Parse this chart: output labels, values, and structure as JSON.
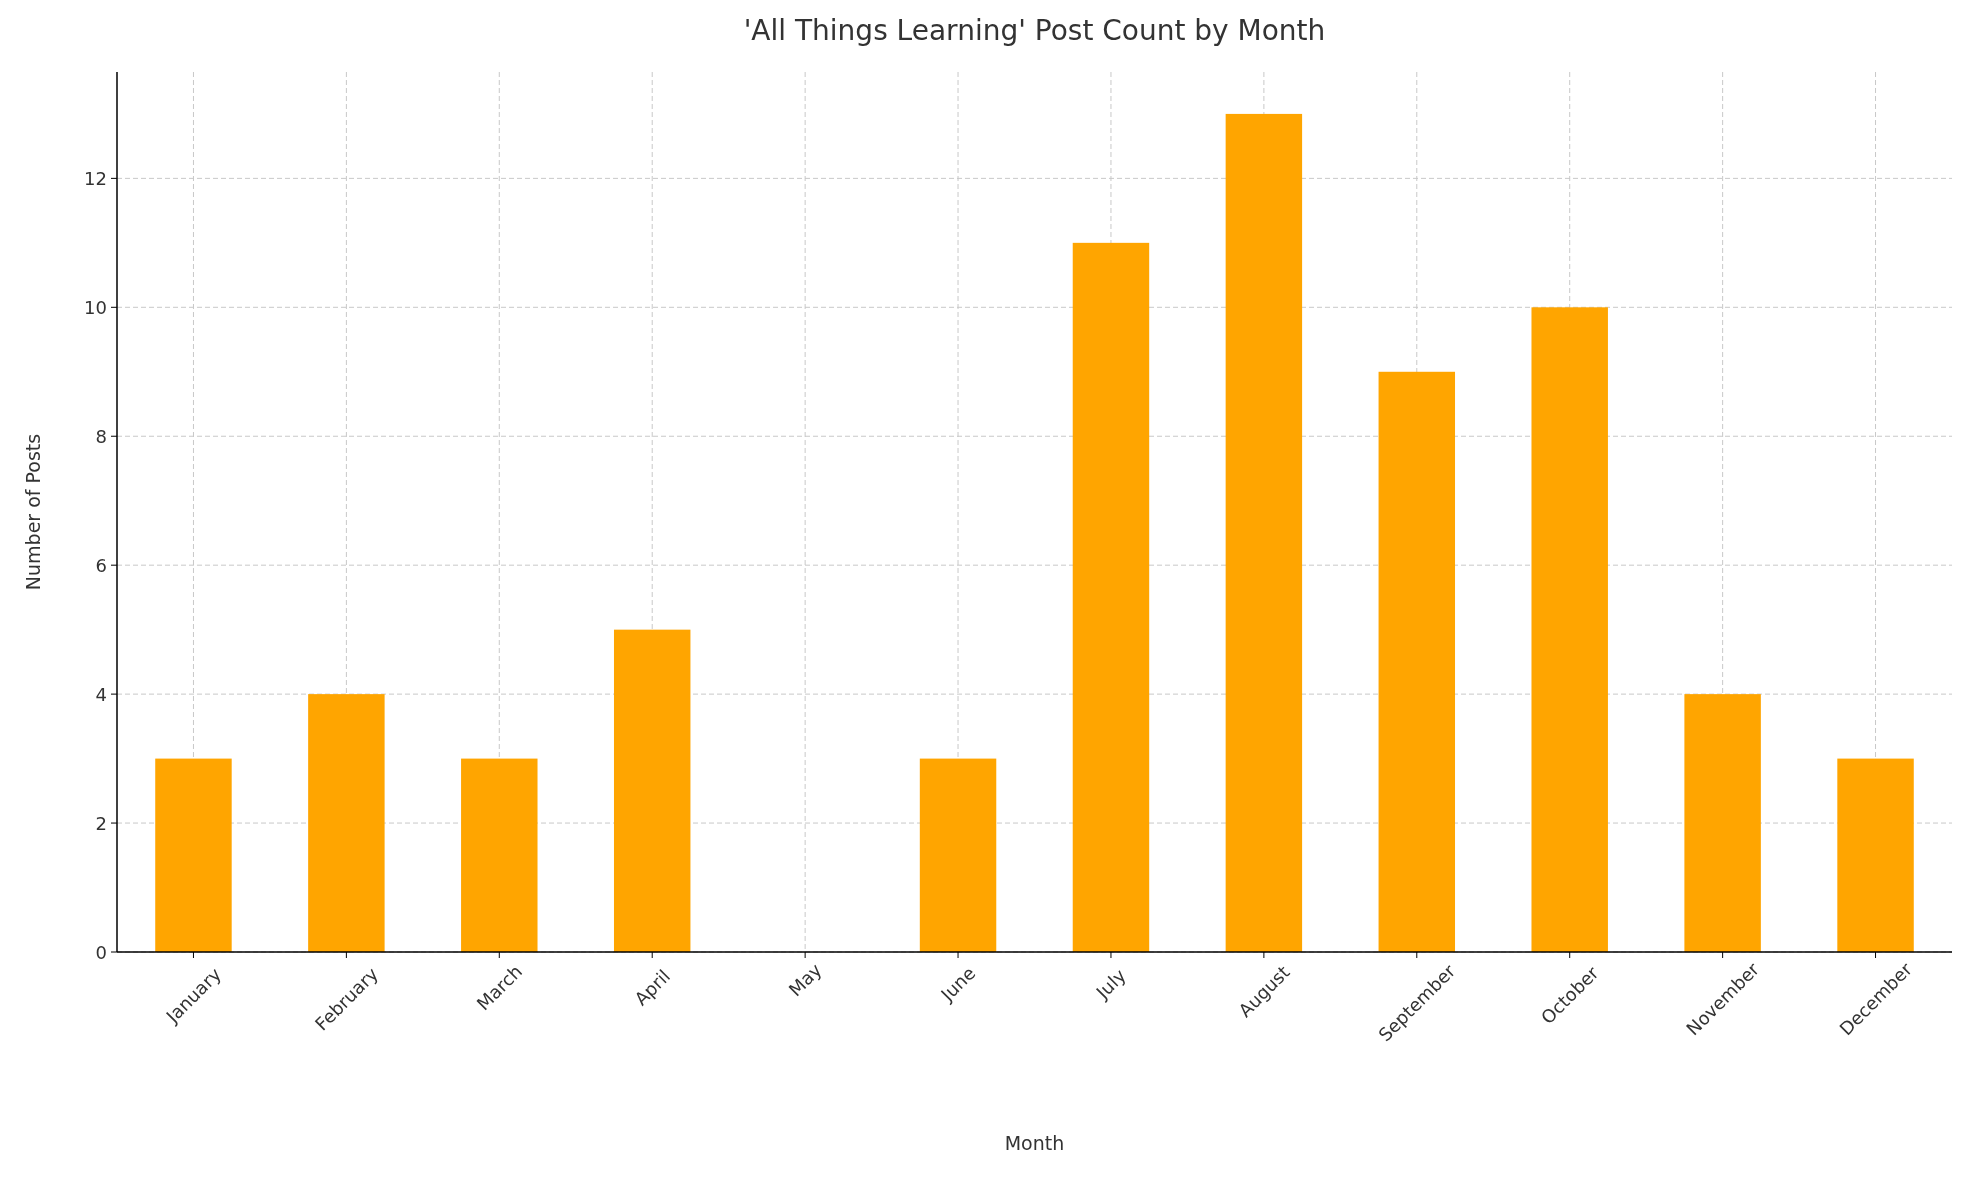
{
  "chart_data": {
    "type": "bar",
    "title": "'All Things Learning' Post Count by Month",
    "xlabel": "Month",
    "ylabel": "Number of Posts",
    "categories": [
      "January",
      "February",
      "March",
      "April",
      "May",
      "June",
      "July",
      "August",
      "September",
      "October",
      "November",
      "December"
    ],
    "values": [
      3,
      4,
      3,
      5,
      0,
      3,
      11,
      13,
      9,
      10,
      4,
      3
    ],
    "color": "#ffa500",
    "ylim": [
      0,
      13.65
    ],
    "yticks": [
      0,
      2,
      4,
      6,
      8,
      10,
      12
    ],
    "grid": true
  }
}
